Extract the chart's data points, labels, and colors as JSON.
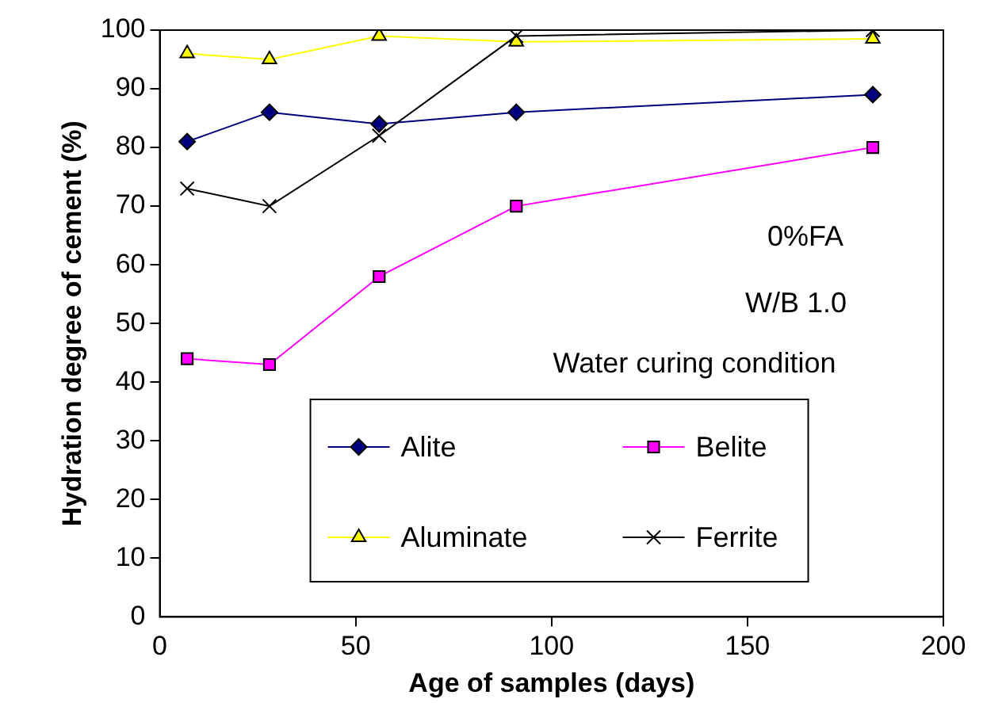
{
  "chart_data": {
    "type": "line",
    "xlabel": "Age of samples (days)",
    "ylabel": "Hydration degree of cement (%)",
    "x": [
      7,
      28,
      56,
      91,
      182
    ],
    "series": [
      {
        "name": "Alite",
        "color": "#000080",
        "marker": "diamond",
        "values": [
          81,
          86,
          84,
          86,
          89
        ]
      },
      {
        "name": "Belite",
        "color": "#ff00ff",
        "marker": "square",
        "values": [
          44,
          43,
          58,
          70,
          80
        ]
      },
      {
        "name": "Aluminate",
        "color": "#ffff00",
        "marker": "triangle",
        "values": [
          96,
          95,
          99,
          98,
          98.5
        ]
      },
      {
        "name": "Ferrite",
        "color": "#000000",
        "marker": "cross",
        "values": [
          73,
          70,
          82,
          99,
          100
        ]
      }
    ],
    "xlim": [
      0,
      200
    ],
    "xticks": [
      0,
      50,
      100,
      150,
      200
    ],
    "ylim": [
      0,
      100
    ],
    "yticks": [
      0,
      10,
      20,
      30,
      40,
      50,
      60,
      70,
      80,
      90,
      100
    ],
    "grid": false,
    "legend": "bottom",
    "line_style": "solid",
    "annotations": [
      "0%FA",
      "W/B 1.0",
      "Water curing condition"
    ]
  }
}
